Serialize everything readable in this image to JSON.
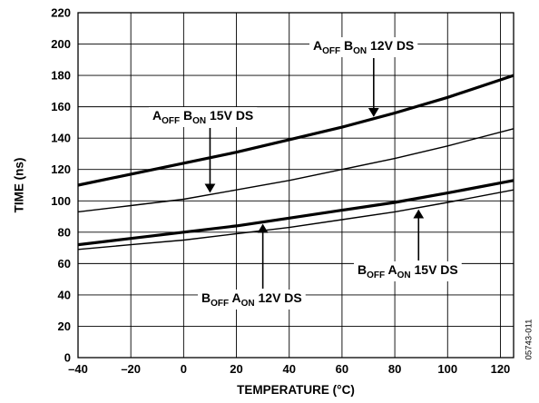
{
  "chart_data": {
    "type": "line",
    "xlabel": "TEMPERATURE (°C)",
    "ylabel": "TIME (ns)",
    "xlim": [
      -40,
      125
    ],
    "ylim": [
      0,
      220
    ],
    "xticks": [
      -40,
      -20,
      0,
      20,
      40,
      60,
      80,
      100,
      120
    ],
    "yticks": [
      0,
      20,
      40,
      60,
      80,
      100,
      120,
      140,
      160,
      180,
      200,
      220
    ],
    "grid": true,
    "series": [
      {
        "name": "AOFF BON 12V DS",
        "heavy": true,
        "x": [
          -40,
          -20,
          0,
          20,
          40,
          60,
          80,
          100,
          125
        ],
        "y": [
          110,
          117,
          124,
          131,
          139,
          147,
          156,
          166,
          180
        ]
      },
      {
        "name": "AOFF BON 15V DS",
        "heavy": false,
        "x": [
          -40,
          -20,
          0,
          20,
          40,
          60,
          80,
          100,
          125
        ],
        "y": [
          93,
          97,
          101,
          107,
          113,
          120,
          127,
          135,
          146
        ]
      },
      {
        "name": "BOFF AON 12V DS",
        "heavy": true,
        "x": [
          -40,
          -20,
          0,
          20,
          40,
          60,
          80,
          100,
          125
        ],
        "y": [
          72,
          76,
          80,
          84,
          89,
          94,
          99,
          105,
          113
        ]
      },
      {
        "name": "BOFF AON 15V DS",
        "heavy": false,
        "x": [
          -40,
          -20,
          0,
          20,
          40,
          60,
          80,
          100,
          125
        ],
        "y": [
          69,
          72,
          75,
          79,
          83,
          88,
          93,
          99,
          107
        ]
      }
    ],
    "annotations": [
      {
        "main": "A",
        "sub": "OFF",
        "main2": " B",
        "sub2": "ON",
        "rest": " 12V DS",
        "target_series": 0
      },
      {
        "main": "A",
        "sub": "OFF",
        "main2": " B",
        "sub2": "ON",
        "rest": " 15V DS",
        "target_series": 1
      },
      {
        "main": "B",
        "sub": "OFF",
        "main2": " A",
        "sub2": "ON",
        "rest": " 15V DS",
        "target_series": 3
      },
      {
        "main": "B",
        "sub": "OFF",
        "main2": " A",
        "sub2": "ON",
        "rest": " 12V DS",
        "target_series": 2
      }
    ],
    "figure_id": "05743-011"
  }
}
